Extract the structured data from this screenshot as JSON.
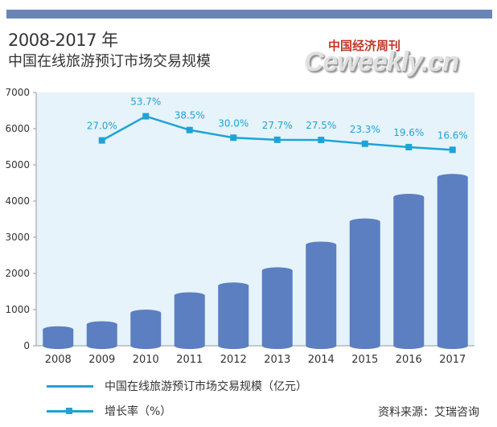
{
  "header": {
    "title_line1": "2008-2017 年",
    "title_line2": "中国在线旅游预订市场交易规模"
  },
  "logo": {
    "cn_text": "中国经济周刊",
    "en_text": "Ceweekly.cn"
  },
  "legend": {
    "series1_label": "中国在线旅游预订市场交易规模（亿元）",
    "series2_label": "增长率（%）"
  },
  "source_text": "资料来源：艾瑞咨询",
  "colors": {
    "bar": "#5b7fc1",
    "line": "#1fa3d6",
    "plot_bg": "#e6f3fa",
    "title_bar": "#6b84b8"
  },
  "chart_data": {
    "type": "bar",
    "categories": [
      "2008",
      "2009",
      "2010",
      "2011",
      "2012",
      "2013",
      "2014",
      "2015",
      "2016",
      "2017"
    ],
    "series": [
      {
        "name": "中国在线旅游预订市场交易规模（亿元）",
        "type": "bar",
        "values": [
          450,
          590,
          910,
          1390,
          1660,
          2080,
          2790,
          3430,
          4110,
          4660
        ]
      },
      {
        "name": "增长率（%）",
        "type": "line",
        "values": [
          null,
          27.0,
          53.7,
          38.5,
          30.0,
          27.7,
          27.5,
          23.3,
          19.6,
          16.6
        ],
        "data_labels": [
          "",
          "27.0%",
          "53.7%",
          "38.5%",
          "30.0%",
          "27.7%",
          "27.5%",
          "23.3%",
          "19.6%",
          "16.6%"
        ]
      }
    ],
    "yticks": [
      "0",
      "1000",
      "2000",
      "3000",
      "4000",
      "5000",
      "6000",
      "7000"
    ],
    "ylim": [
      0,
      7000
    ],
    "grid": false
  }
}
